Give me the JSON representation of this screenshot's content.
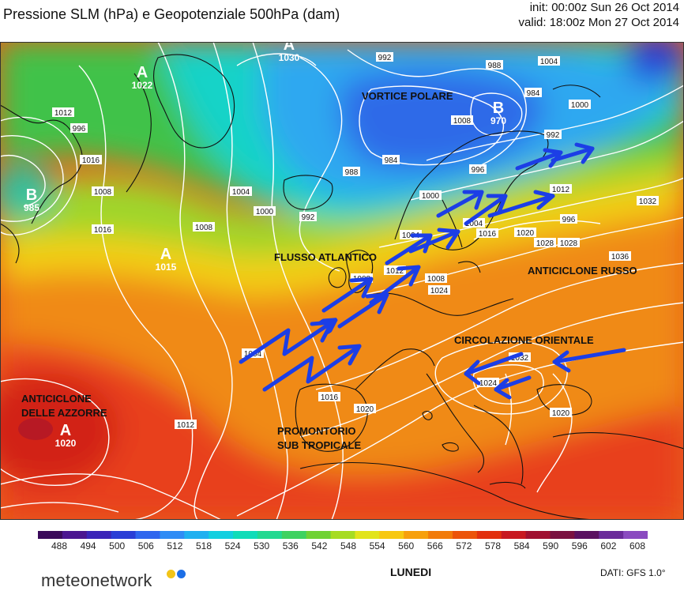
{
  "header": {
    "title": "Pressione SLM (hPa) e Geopotenziale 500hPa (dam)",
    "init": "init: 00:00z Sun 26 Oct 2014",
    "valid": "valid: 18:00z Mon 27 Oct 2014"
  },
  "annotations": {
    "vortice": "VORTICE POLARE",
    "flusso": "FLUSSO ATLANTICO",
    "anticiclone_russo": "ANTICICLONE RUSSO",
    "circolazione": "CIRCOLAZIONE ORIENTALE",
    "azzorre_1": "ANTICICLONE",
    "azzorre_2": "DELLE AZZORRE",
    "promontorio_1": "PROMONTORIO",
    "promontorio_2": "SUB TROPICALE"
  },
  "pressure_centers": [
    {
      "type": "A",
      "value": "1030"
    },
    {
      "type": "A",
      "value": "1022"
    },
    {
      "type": "B",
      "value": "970"
    },
    {
      "type": "B",
      "value": "985"
    },
    {
      "type": "A",
      "value": "1015"
    },
    {
      "type": "A",
      "value": "1020"
    }
  ],
  "isobar_labels": [
    "992",
    "988",
    "1004",
    "1000",
    "984",
    "1012",
    "1016",
    "996",
    "1008",
    "1004",
    "1000",
    "1008",
    "992",
    "988",
    "984",
    "1008",
    "996",
    "992",
    "1000",
    "996",
    "1012",
    "1004",
    "1016",
    "1020",
    "1032",
    "1028",
    "1036",
    "1004",
    "1008",
    "1012",
    "1024",
    "1016",
    "1020",
    "1028",
    "1032",
    "1020",
    "1012",
    "1004",
    "1024",
    "1008",
    "1016"
  ],
  "color_scale": {
    "values": [
      "488",
      "494",
      "500",
      "506",
      "512",
      "518",
      "524",
      "530",
      "536",
      "542",
      "548",
      "554",
      "560",
      "566",
      "572",
      "578",
      "584",
      "590",
      "596",
      "602",
      "608"
    ],
    "colors": [
      "#3a0a5a",
      "#4b1590",
      "#3a24b8",
      "#2a3ed6",
      "#2f66ee",
      "#2f8cf5",
      "#1fb0f0",
      "#12cfe0",
      "#10dcb8",
      "#22d990",
      "#3ed260",
      "#6fd234",
      "#a6dc22",
      "#e2e41a",
      "#f7c810",
      "#f7a00c",
      "#f27b0a",
      "#ec540a",
      "#e2300e",
      "#c81820",
      "#a01030",
      "#7a1040",
      "#5a1060",
      "#6a2a9a",
      "#8a4ac0"
    ]
  },
  "footer": {
    "brand": "meteonetwork",
    "day": "LUNEDI",
    "dati": "DATI:  GFS  1.0°"
  },
  "colors": {
    "arrow": "#1c3ee6",
    "contour": "#ffffff",
    "coast": "#111111"
  }
}
